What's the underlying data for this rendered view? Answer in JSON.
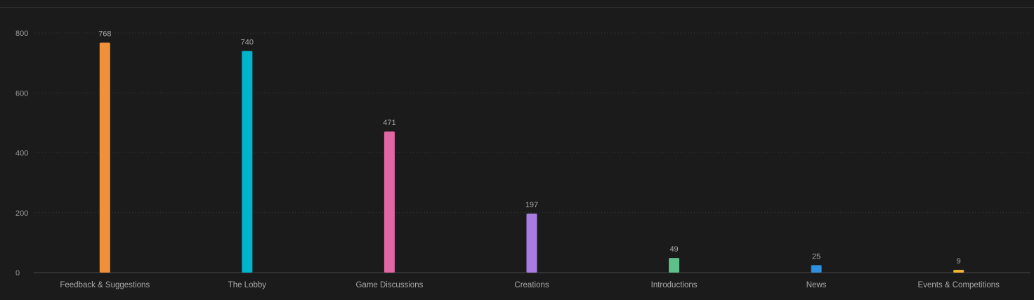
{
  "chart_data": {
    "type": "bar",
    "title": "",
    "xlabel": "",
    "ylabel": "",
    "ylim": [
      0,
      800
    ],
    "yticks": [
      0,
      200,
      400,
      600,
      800
    ],
    "grid": true,
    "legend": "none",
    "categories": [
      "Feedback & Suggestions",
      "The Lobby",
      "Game Discussions",
      "Creations",
      "Introductions",
      "News",
      "Events & Competitions"
    ],
    "values": [
      768,
      740,
      471,
      197,
      49,
      25,
      9
    ],
    "colors": [
      "#f0913a",
      "#00b4cc",
      "#e066a4",
      "#a97de0",
      "#5fbf8a",
      "#2f8fe0",
      "#f5b82e"
    ]
  }
}
